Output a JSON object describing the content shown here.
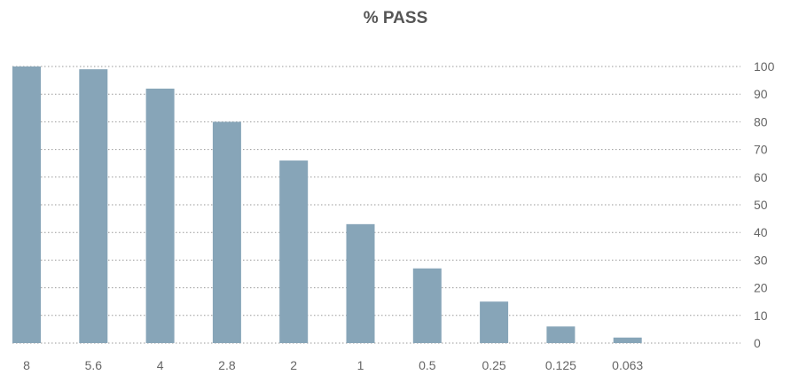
{
  "chart_data": {
    "type": "bar",
    "title": "% PASS",
    "xlabel": "",
    "ylabel": "",
    "categories": [
      "8",
      "5.6",
      "4",
      "2.8",
      "2",
      "1",
      "0.5",
      "0.25",
      "0.125",
      "0.063"
    ],
    "values": [
      100,
      99,
      92,
      80,
      66,
      43,
      27,
      15,
      6,
      2
    ],
    "ylim": [
      0,
      100
    ],
    "yticks": [
      0,
      10,
      20,
      30,
      40,
      50,
      60,
      70,
      80,
      90,
      100
    ],
    "y_axis_side": "right",
    "grid": true,
    "bar_color": "#87A5B8",
    "legend": "none"
  }
}
